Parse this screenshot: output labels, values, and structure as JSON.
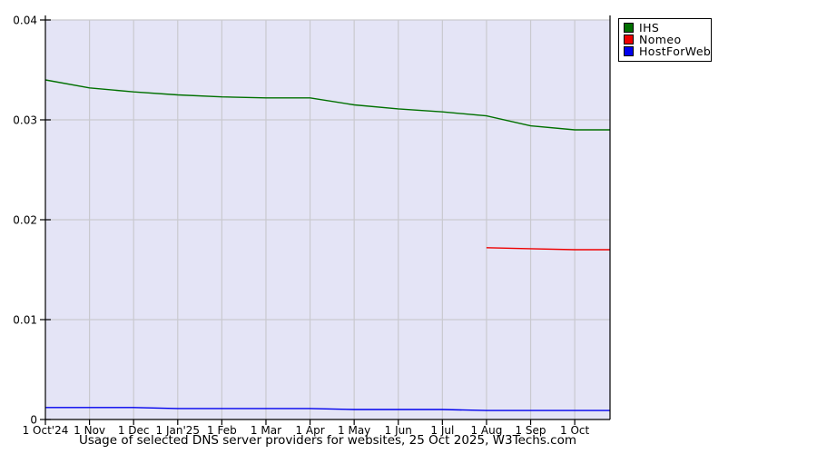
{
  "chart_data": {
    "type": "line",
    "title": "Usage of selected DNS server providers for websites, 25 Oct 2025, W3Techs.com",
    "xlabel": "",
    "ylabel": "",
    "ylim": [
      0,
      0.04
    ],
    "x_range_months": [
      0,
      12.8
    ],
    "grid": true,
    "legend_position": "top-right",
    "plot_bg": "#e4e4f6",
    "grid_color": "#c9c9cf",
    "axis_color": "#000000",
    "y_ticks": [
      0,
      0.01,
      0.02,
      0.03,
      0.04
    ],
    "y_tick_labels": [
      "0",
      "0.01",
      "0.02",
      "0.03",
      "0.04"
    ],
    "x_tick_labels": [
      "1 Oct'24",
      "1 Nov",
      "1 Dec",
      "1 Jan'25",
      "1 Feb",
      "1 Mar",
      "1 Apr",
      "1 May",
      "1 Jun",
      "1 Jul",
      "1 Aug",
      "1 Sep",
      "1 Oct"
    ],
    "series": [
      {
        "name": "IHS",
        "color": "#007000",
        "x": [
          0,
          1,
          2,
          3,
          4,
          5,
          6,
          7,
          8,
          9,
          10,
          11,
          12,
          12.8
        ],
        "values": [
          0.034,
          0.0332,
          0.0328,
          0.0325,
          0.0323,
          0.0322,
          0.0322,
          0.0315,
          0.0311,
          0.0308,
          0.0304,
          0.0294,
          0.029,
          0.029
        ]
      },
      {
        "name": "Nomeo",
        "color": "#ee0000",
        "x": [
          10,
          11,
          12,
          12.8
        ],
        "values": [
          0.0172,
          0.0171,
          0.017,
          0.017
        ]
      },
      {
        "name": "HostForWeb",
        "color": "#0000ee",
        "x": [
          0,
          1,
          2,
          3,
          4,
          5,
          6,
          7,
          8,
          9,
          10,
          11,
          12,
          12.8
        ],
        "values": [
          0.0012,
          0.0012,
          0.0012,
          0.0011,
          0.0011,
          0.0011,
          0.0011,
          0.001,
          0.001,
          0.001,
          0.0009,
          0.0009,
          0.0009,
          0.0009
        ]
      }
    ]
  }
}
